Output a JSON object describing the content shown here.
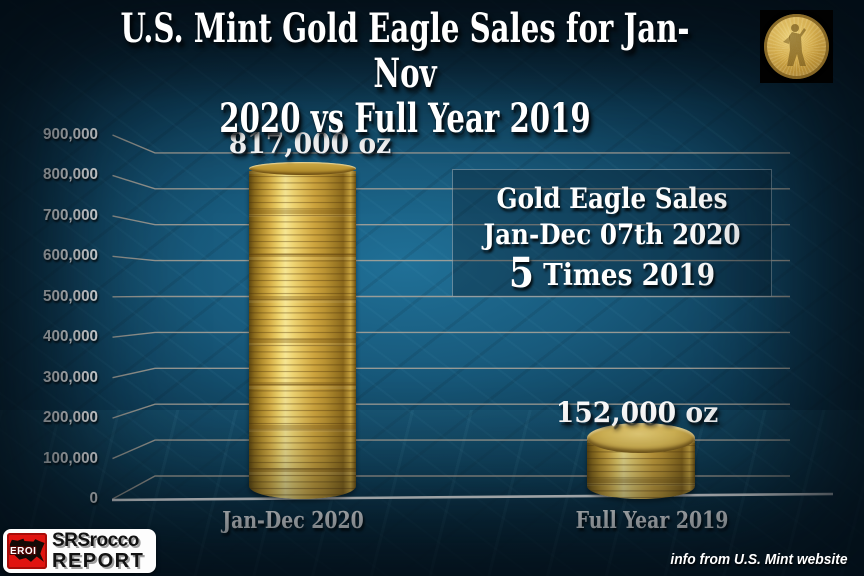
{
  "title": {
    "line1": "U.S. Mint Gold Eagle Sales for Jan-Nov",
    "line2": "2020 vs Full Year 2019"
  },
  "annotation": {
    "line1": "Gold Eagle Sales",
    "line2": "Jan-Dec 07th 2020",
    "line3_big": "5",
    "line3_rest": " Times 2019"
  },
  "footer": {
    "note": "info from U.S. Mint website"
  },
  "logo": {
    "badge": "EROI",
    "line1": "SRSrocco",
    "line2": "REPORT"
  },
  "colors": {
    "background": "#0c2a3d",
    "wall_glow": "#1f6f95",
    "grid": "#b3a89b",
    "baseline": "#ffffff",
    "gold": "#d9b44e",
    "gold_dark": "#6b4f10",
    "box_fill": "rgba(6,20,32,0.32)",
    "box_border": "rgba(198,212,222,0.45)",
    "logo_red": "#e01410",
    "text": "#ffffff"
  },
  "chart_data": {
    "type": "bar",
    "style": "3d-gold-coin-stack-cylinders",
    "title": "U.S. Mint Gold Eagle Sales for Jan-Nov 2020 vs Full Year 2019",
    "categories": [
      "Jan-Dec 2020",
      "Full Year 2019"
    ],
    "values": [
      817000,
      152000
    ],
    "value_labels": [
      "817,000 oz",
      "152,000 oz"
    ],
    "unit": "oz",
    "xlabel": "",
    "ylabel": "",
    "ylim": [
      0,
      900000
    ],
    "grid": true,
    "legend": false,
    "yticks": [
      {
        "label": "900,000",
        "value": 900000
      },
      {
        "label": "800,000",
        "value": 800000
      },
      {
        "label": "700,000",
        "value": 700000
      },
      {
        "label": "600,000",
        "value": 600000
      },
      {
        "label": "500,000",
        "value": 500000
      },
      {
        "label": "400,000",
        "value": 400000
      },
      {
        "label": "300,000",
        "value": 300000
      },
      {
        "label": "200,000",
        "value": 200000
      },
      {
        "label": "100,000",
        "value": 100000
      },
      {
        "label": "0",
        "value": 0
      }
    ],
    "annotation": "Gold Eagle Sales Jan-Dec 07th 2020 = 5 Times 2019",
    "source": "info from U.S. Mint website"
  }
}
